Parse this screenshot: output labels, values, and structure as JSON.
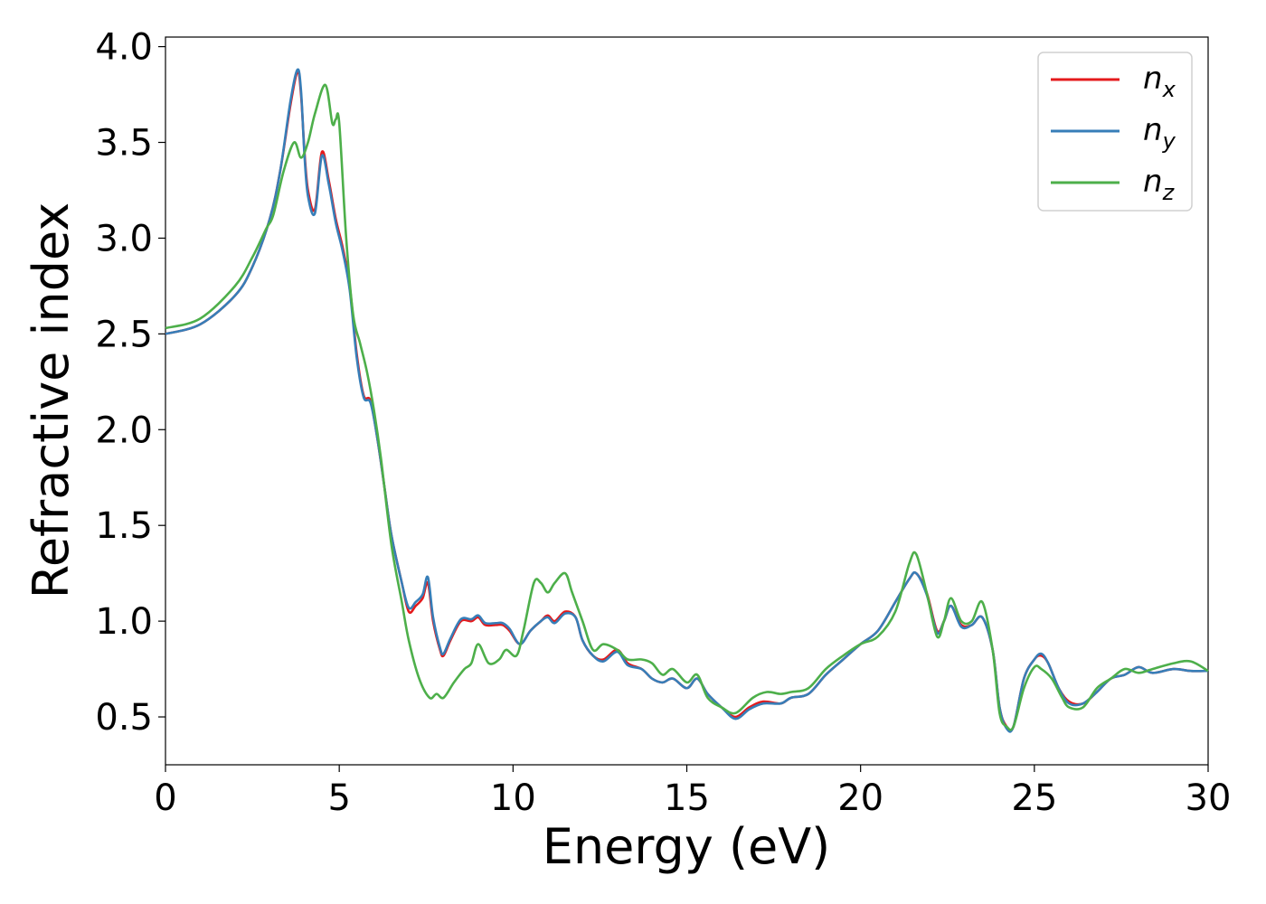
{
  "chart_data": {
    "type": "line",
    "xlabel": "Energy (eV)",
    "ylabel": "Refractive index",
    "xlim": [
      0,
      30
    ],
    "ylim": [
      0.25,
      4.05
    ],
    "xticks": [
      0,
      5,
      10,
      15,
      20,
      25,
      30
    ],
    "yticks": [
      0.5,
      1.0,
      1.5,
      2.0,
      2.5,
      3.0,
      3.5,
      4.0
    ],
    "xtick_labels": [
      "0",
      "5",
      "10",
      "15",
      "20",
      "25",
      "30"
    ],
    "ytick_labels": [
      "0.5",
      "1.0",
      "1.5",
      "2.0",
      "2.5",
      "3.0",
      "3.5",
      "4.0"
    ],
    "grid": false,
    "legend_position": "top-right",
    "series": [
      {
        "name": "n_x",
        "legend_base": "n",
        "legend_sub": "x",
        "color": "#e41a1c",
        "x": [
          0,
          1,
          2,
          2.5,
          3,
          3.3,
          3.6,
          3.8,
          3.9,
          4.0,
          4.1,
          4.3,
          4.5,
          4.7,
          4.9,
          5.1,
          5.3,
          5.5,
          5.7,
          5.9,
          6.1,
          6.3,
          6.5,
          6.8,
          7.0,
          7.2,
          7.4,
          7.55,
          7.7,
          7.9,
          8.0,
          8.2,
          8.5,
          8.8,
          9.0,
          9.2,
          9.5,
          9.7,
          9.9,
          10.2,
          10.5,
          10.8,
          11.0,
          11.2,
          11.5,
          11.8,
          12.0,
          12.3,
          12.6,
          13.0,
          13.3,
          13.7,
          14.0,
          14.3,
          14.6,
          15.0,
          15.3,
          15.6,
          16.0,
          16.4,
          16.8,
          17.2,
          17.7,
          18.0,
          18.5,
          19.0,
          19.5,
          20.0,
          20.5,
          21.0,
          21.4,
          21.6,
          21.9,
          22.2,
          22.4,
          22.6,
          22.9,
          23.2,
          23.5,
          23.8,
          24.0,
          24.2,
          24.4,
          24.7,
          25.0,
          25.2,
          25.4,
          25.7,
          26.0,
          26.4,
          26.8,
          27.2,
          27.6,
          28.0,
          28.4,
          29.0,
          29.5,
          30.0
        ],
        "values": [
          2.5,
          2.55,
          2.7,
          2.85,
          3.1,
          3.35,
          3.7,
          3.87,
          3.75,
          3.45,
          3.25,
          3.15,
          3.45,
          3.3,
          3.1,
          2.95,
          2.75,
          2.4,
          2.18,
          2.15,
          1.95,
          1.7,
          1.45,
          1.2,
          1.05,
          1.08,
          1.12,
          1.2,
          1.0,
          0.85,
          0.82,
          0.9,
          1.0,
          1.0,
          1.02,
          0.98,
          0.98,
          0.98,
          0.95,
          0.88,
          0.95,
          1.0,
          1.03,
          1.0,
          1.05,
          1.02,
          0.9,
          0.82,
          0.8,
          0.85,
          0.78,
          0.75,
          0.7,
          0.68,
          0.7,
          0.65,
          0.7,
          0.62,
          0.55,
          0.5,
          0.55,
          0.58,
          0.57,
          0.6,
          0.62,
          0.72,
          0.8,
          0.88,
          0.95,
          1.1,
          1.22,
          1.25,
          1.15,
          0.95,
          1.0,
          1.08,
          0.98,
          0.98,
          1.02,
          0.85,
          0.55,
          0.45,
          0.45,
          0.7,
          0.8,
          0.82,
          0.78,
          0.65,
          0.58,
          0.57,
          0.63,
          0.7,
          0.72,
          0.76,
          0.73,
          0.75,
          0.74,
          0.74
        ]
      },
      {
        "name": "n_y",
        "legend_base": "n",
        "legend_sub": "y",
        "color": "#377eb8",
        "x": [
          0,
          1,
          2,
          2.5,
          3,
          3.3,
          3.6,
          3.8,
          3.9,
          4.0,
          4.1,
          4.3,
          4.5,
          4.7,
          4.9,
          5.1,
          5.3,
          5.5,
          5.7,
          5.9,
          6.1,
          6.3,
          6.5,
          6.8,
          7.0,
          7.2,
          7.4,
          7.55,
          7.7,
          7.9,
          8.0,
          8.2,
          8.5,
          8.8,
          9.0,
          9.2,
          9.5,
          9.7,
          9.9,
          10.2,
          10.5,
          10.8,
          11.0,
          11.2,
          11.5,
          11.8,
          12.0,
          12.3,
          12.6,
          13.0,
          13.3,
          13.7,
          14.0,
          14.3,
          14.6,
          15.0,
          15.3,
          15.6,
          16.0,
          16.4,
          16.8,
          17.2,
          17.7,
          18.0,
          18.5,
          19.0,
          19.5,
          20.0,
          20.5,
          21.0,
          21.4,
          21.6,
          21.9,
          22.2,
          22.4,
          22.6,
          22.9,
          23.2,
          23.5,
          23.8,
          24.0,
          24.2,
          24.4,
          24.7,
          25.0,
          25.2,
          25.4,
          25.7,
          26.0,
          26.4,
          26.8,
          27.2,
          27.6,
          28.0,
          28.4,
          29.0,
          29.5,
          30.0
        ],
        "values": [
          2.5,
          2.55,
          2.7,
          2.85,
          3.1,
          3.35,
          3.72,
          3.88,
          3.77,
          3.43,
          3.22,
          3.13,
          3.43,
          3.28,
          3.08,
          2.93,
          2.73,
          2.38,
          2.17,
          2.14,
          1.95,
          1.7,
          1.45,
          1.2,
          1.07,
          1.1,
          1.14,
          1.23,
          1.02,
          0.86,
          0.83,
          0.91,
          1.01,
          1.01,
          1.03,
          0.99,
          0.99,
          0.99,
          0.96,
          0.88,
          0.95,
          1.0,
          1.02,
          0.99,
          1.04,
          1.02,
          0.9,
          0.82,
          0.79,
          0.84,
          0.77,
          0.75,
          0.7,
          0.68,
          0.7,
          0.65,
          0.7,
          0.62,
          0.55,
          0.49,
          0.54,
          0.57,
          0.57,
          0.6,
          0.62,
          0.72,
          0.8,
          0.88,
          0.95,
          1.1,
          1.22,
          1.25,
          1.14,
          0.94,
          1.0,
          1.08,
          0.97,
          0.98,
          1.02,
          0.85,
          0.55,
          0.44,
          0.45,
          0.7,
          0.8,
          0.83,
          0.78,
          0.65,
          0.57,
          0.57,
          0.63,
          0.7,
          0.72,
          0.76,
          0.73,
          0.75,
          0.74,
          0.74
        ]
      },
      {
        "name": "n_z",
        "legend_base": "n",
        "legend_sub": "z",
        "color": "#4daf4a",
        "x": [
          0,
          1,
          2,
          2.5,
          2.9,
          3.1,
          3.4,
          3.7,
          3.9,
          4.1,
          4.3,
          4.6,
          4.8,
          4.9,
          5.0,
          5.2,
          5.4,
          5.6,
          5.8,
          6.0,
          6.2,
          6.5,
          6.8,
          7.0,
          7.3,
          7.6,
          7.8,
          8.0,
          8.3,
          8.6,
          8.8,
          9.0,
          9.3,
          9.6,
          9.8,
          10.1,
          10.3,
          10.6,
          10.8,
          11.0,
          11.2,
          11.5,
          11.7,
          12.0,
          12.3,
          12.6,
          13.0,
          13.3,
          13.7,
          14.0,
          14.3,
          14.6,
          15.0,
          15.3,
          15.6,
          16.0,
          16.4,
          16.9,
          17.3,
          17.7,
          18.0,
          18.5,
          19.0,
          19.5,
          20.0,
          20.5,
          21.0,
          21.4,
          21.6,
          21.9,
          22.2,
          22.4,
          22.6,
          22.9,
          23.2,
          23.5,
          23.8,
          24.0,
          24.2,
          24.4,
          24.7,
          25.0,
          25.2,
          25.5,
          25.8,
          26.0,
          26.4,
          26.8,
          27.2,
          27.6,
          28.0,
          28.4,
          29.0,
          29.5,
          30.0
        ],
        "values": [
          2.53,
          2.58,
          2.75,
          2.9,
          3.05,
          3.12,
          3.35,
          3.5,
          3.42,
          3.5,
          3.65,
          3.8,
          3.6,
          3.62,
          3.6,
          3.0,
          2.6,
          2.45,
          2.3,
          2.1,
          1.85,
          1.4,
          1.1,
          0.9,
          0.7,
          0.6,
          0.62,
          0.6,
          0.68,
          0.75,
          0.78,
          0.88,
          0.78,
          0.8,
          0.85,
          0.82,
          0.95,
          1.2,
          1.2,
          1.15,
          1.2,
          1.25,
          1.15,
          1.0,
          0.85,
          0.88,
          0.85,
          0.8,
          0.8,
          0.78,
          0.72,
          0.75,
          0.68,
          0.72,
          0.6,
          0.55,
          0.52,
          0.6,
          0.63,
          0.62,
          0.63,
          0.65,
          0.75,
          0.82,
          0.88,
          0.92,
          1.05,
          1.3,
          1.35,
          1.15,
          0.92,
          1.0,
          1.12,
          1.0,
          1.0,
          1.1,
          0.85,
          0.52,
          0.45,
          0.45,
          0.65,
          0.76,
          0.75,
          0.7,
          0.6,
          0.55,
          0.55,
          0.65,
          0.7,
          0.75,
          0.73,
          0.75,
          0.78,
          0.79,
          0.74
        ]
      }
    ]
  }
}
